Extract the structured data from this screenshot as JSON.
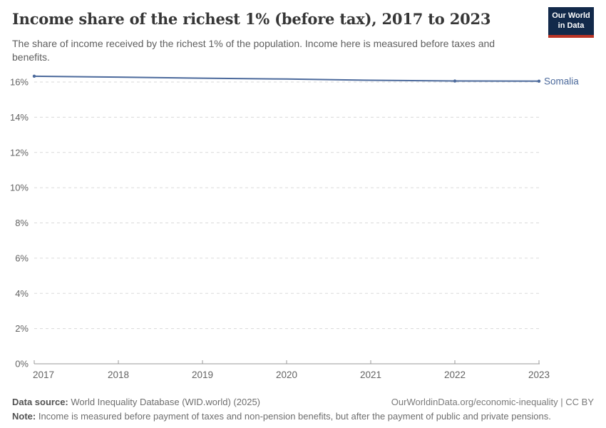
{
  "header": {
    "title": "Income share of the richest 1% (before tax), 2017 to 2023",
    "subtitle": "The share of income received by the richest 1% of the population. Income here is measured before taxes and benefits.",
    "logo": {
      "line1": "Our World",
      "line2": "in Data"
    }
  },
  "chart_data": {
    "type": "line",
    "title": "Income share of the richest 1% (before tax), 2017 to 2023",
    "xlabel": "",
    "ylabel": "",
    "x": [
      2017,
      2018,
      2019,
      2020,
      2021,
      2022,
      2023
    ],
    "series": [
      {
        "name": "Somalia",
        "values": [
          16.33,
          16.28,
          16.22,
          16.17,
          16.1,
          16.06,
          16.05
        ],
        "color": "#4C6A9C"
      }
    ],
    "ylim": [
      0,
      16
    ],
    "ytick_step": 2,
    "ytick_suffix": "%",
    "xticks": [
      2017,
      2018,
      2019,
      2020,
      2021,
      2022,
      2023
    ],
    "grid": "dashed horizontal",
    "legend_position": "end-of-line label",
    "marker_years": [
      2017,
      2022,
      2023
    ]
  },
  "colors": {
    "series": "#4C6A9C",
    "grid": "#dadada",
    "axis": "#9a9a9a",
    "tick_label": "#636363",
    "logo_bg": "#12294a",
    "logo_stripe": "#bb3425"
  },
  "footer": {
    "data_source_label": "Data source:",
    "data_source": " World Inequality Database (WID.world) (2025)",
    "link": "OurWorldinData.org/economic-inequality | CC BY",
    "note_label": "Note:",
    "note": " Income is measured before payment of taxes and non-pension benefits, but after the payment of public and private pensions."
  }
}
